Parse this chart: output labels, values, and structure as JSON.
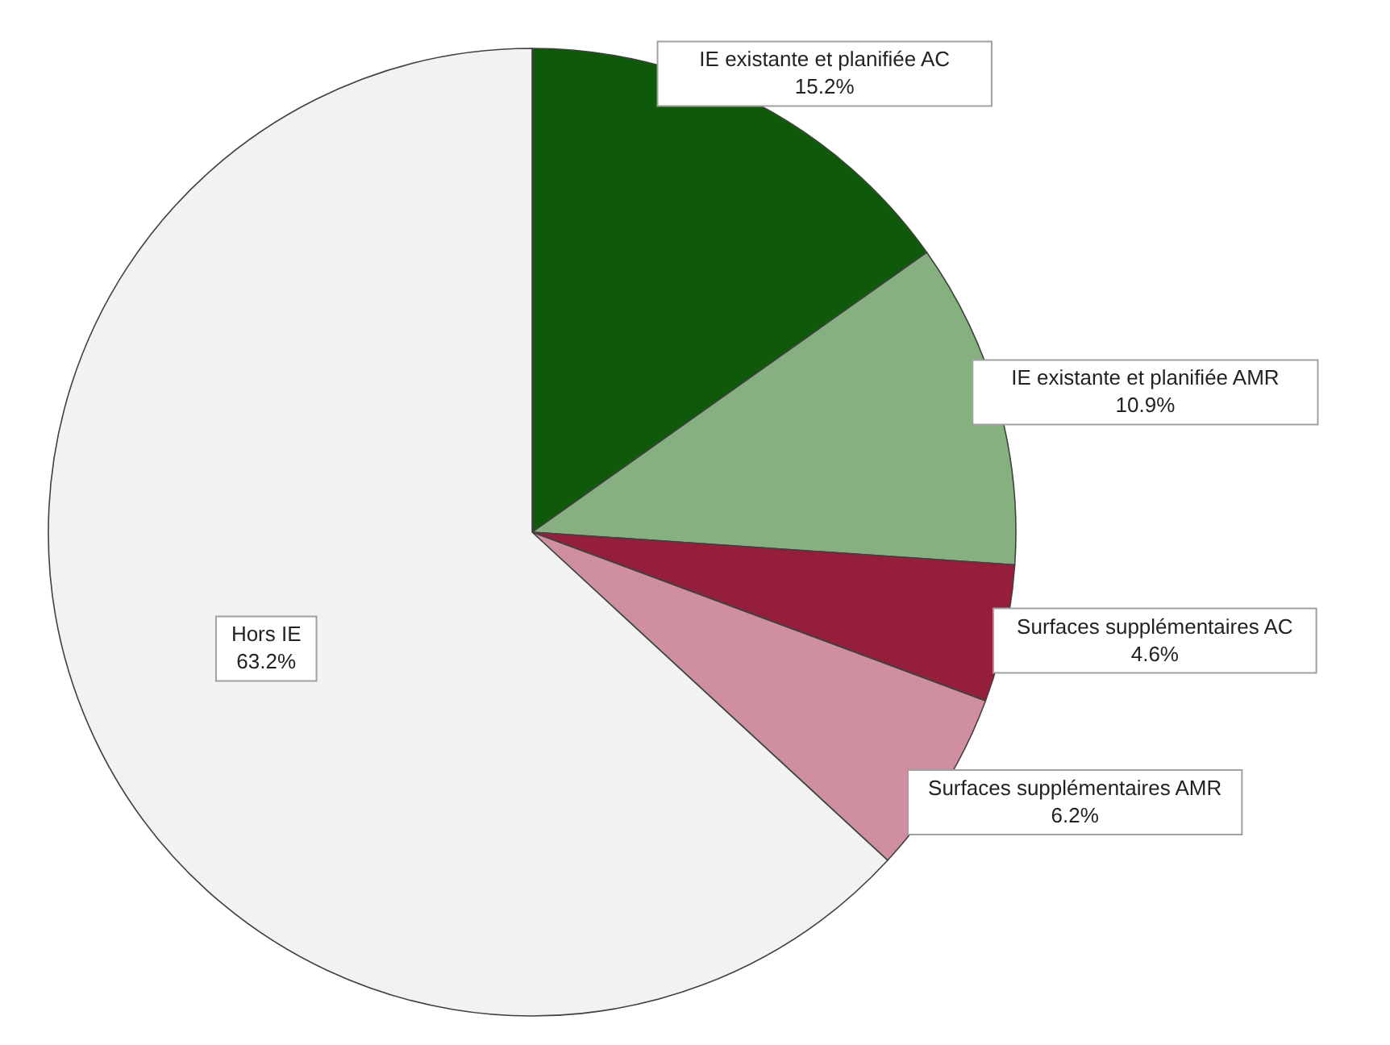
{
  "chart_data": {
    "type": "pie",
    "categories": [
      "IE existante et planifiée AC",
      "IE existante et planifiée AMR",
      "Surfaces supplémentaires AC",
      "Surfaces supplémentaires AMR",
      "Hors IE"
    ],
    "values": [
      15.2,
      10.9,
      4.6,
      6.2,
      63.2
    ],
    "value_labels": [
      "15.2%",
      "10.9%",
      "4.6%",
      "6.2%",
      "63.2%"
    ],
    "colors": [
      "#0e5a0a",
      "#86b080",
      "#951f3a",
      "#cf8f9e",
      "#f2f2f2"
    ]
  }
}
